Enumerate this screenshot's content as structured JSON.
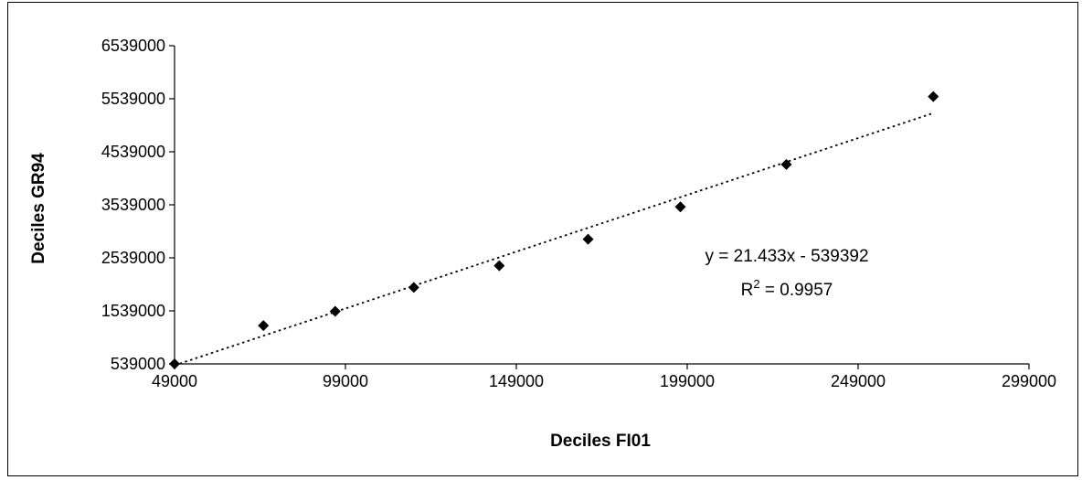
{
  "chart_data": {
    "type": "scatter",
    "title": "",
    "xlabel": "Deciles FI01",
    "ylabel": "Deciles GR94",
    "xlim": [
      49000,
      299000
    ],
    "ylim": [
      539000,
      6539000
    ],
    "x_ticks": [
      "49000",
      "99000",
      "149000",
      "199000",
      "249000",
      "299000"
    ],
    "y_ticks": [
      "539000",
      "1539000",
      "2539000",
      "3539000",
      "4539000",
      "5539000",
      "6539000"
    ],
    "grid": false,
    "legend": "none",
    "series": [
      {
        "marker": "diamond",
        "color": "#000000",
        "x": [
          49000,
          75000,
          96000,
          119000,
          144000,
          170000,
          197000,
          228000,
          271000
        ],
        "y": [
          539000,
          1260000,
          1530000,
          1980000,
          2390000,
          2890000,
          3500000,
          4300000,
          5580000
        ]
      }
    ],
    "trendline": {
      "type": "linear",
      "slope": 21.433,
      "intercept": -539392,
      "style": "dotted",
      "color": "#000000",
      "equation_label": "y = 21.433x - 539392",
      "r2_prefix": "R",
      "r2_superscript": "2",
      "r2_value": " = 0.9957"
    }
  }
}
